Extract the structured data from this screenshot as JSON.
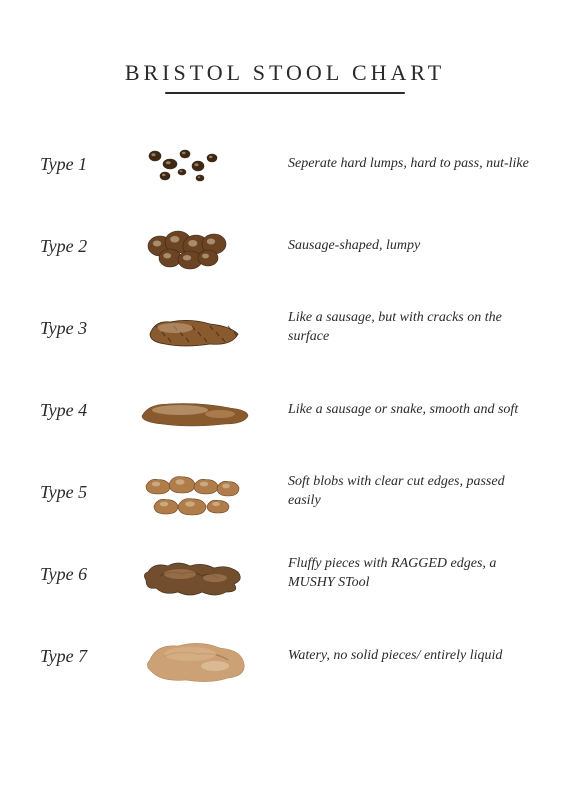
{
  "title": "BRISTOL STOOL CHART",
  "background_color": "#ffffff",
  "text_color": "#2a2a2a",
  "title_fontsize": 22,
  "title_letterspacing": 4,
  "underline_width": 240,
  "font_family": "Brush Script MT, cursive",
  "palette": {
    "dark_brown": "#3d2815",
    "mid_brown": "#6b4423",
    "warm_brown": "#8a5a2f",
    "light_brown": "#b07d4a",
    "tan": "#c89a6a",
    "pale_tan": "#d9b88a",
    "highlight": "#e8d4b5"
  },
  "rows": [
    {
      "label": "Type 1",
      "description": "Seperate hard lumps, hard to pass, nut-like",
      "illustration": "scattered-lumps"
    },
    {
      "label": "Type 2",
      "description": "Sausage-shaped, lumpy",
      "illustration": "lumpy-cluster"
    },
    {
      "label": "Type 3",
      "description": "Like a sausage, but with cracks on the surface",
      "illustration": "cracked-sausage"
    },
    {
      "label": "Type 4",
      "description": "Like a sausage or snake, smooth and soft",
      "illustration": "smooth-sausage"
    },
    {
      "label": "Type 5",
      "description": "Soft blobs with clear cut edges, passed easily",
      "illustration": "soft-blobs"
    },
    {
      "label": "Type 6",
      "description": "Fluffy pieces with RAGGED edges, a MUSHY STool",
      "illustration": "ragged-mushy"
    },
    {
      "label": "Type 7",
      "description": "Watery, no solid pieces/ entirely liquid",
      "illustration": "watery-puddle"
    }
  ]
}
